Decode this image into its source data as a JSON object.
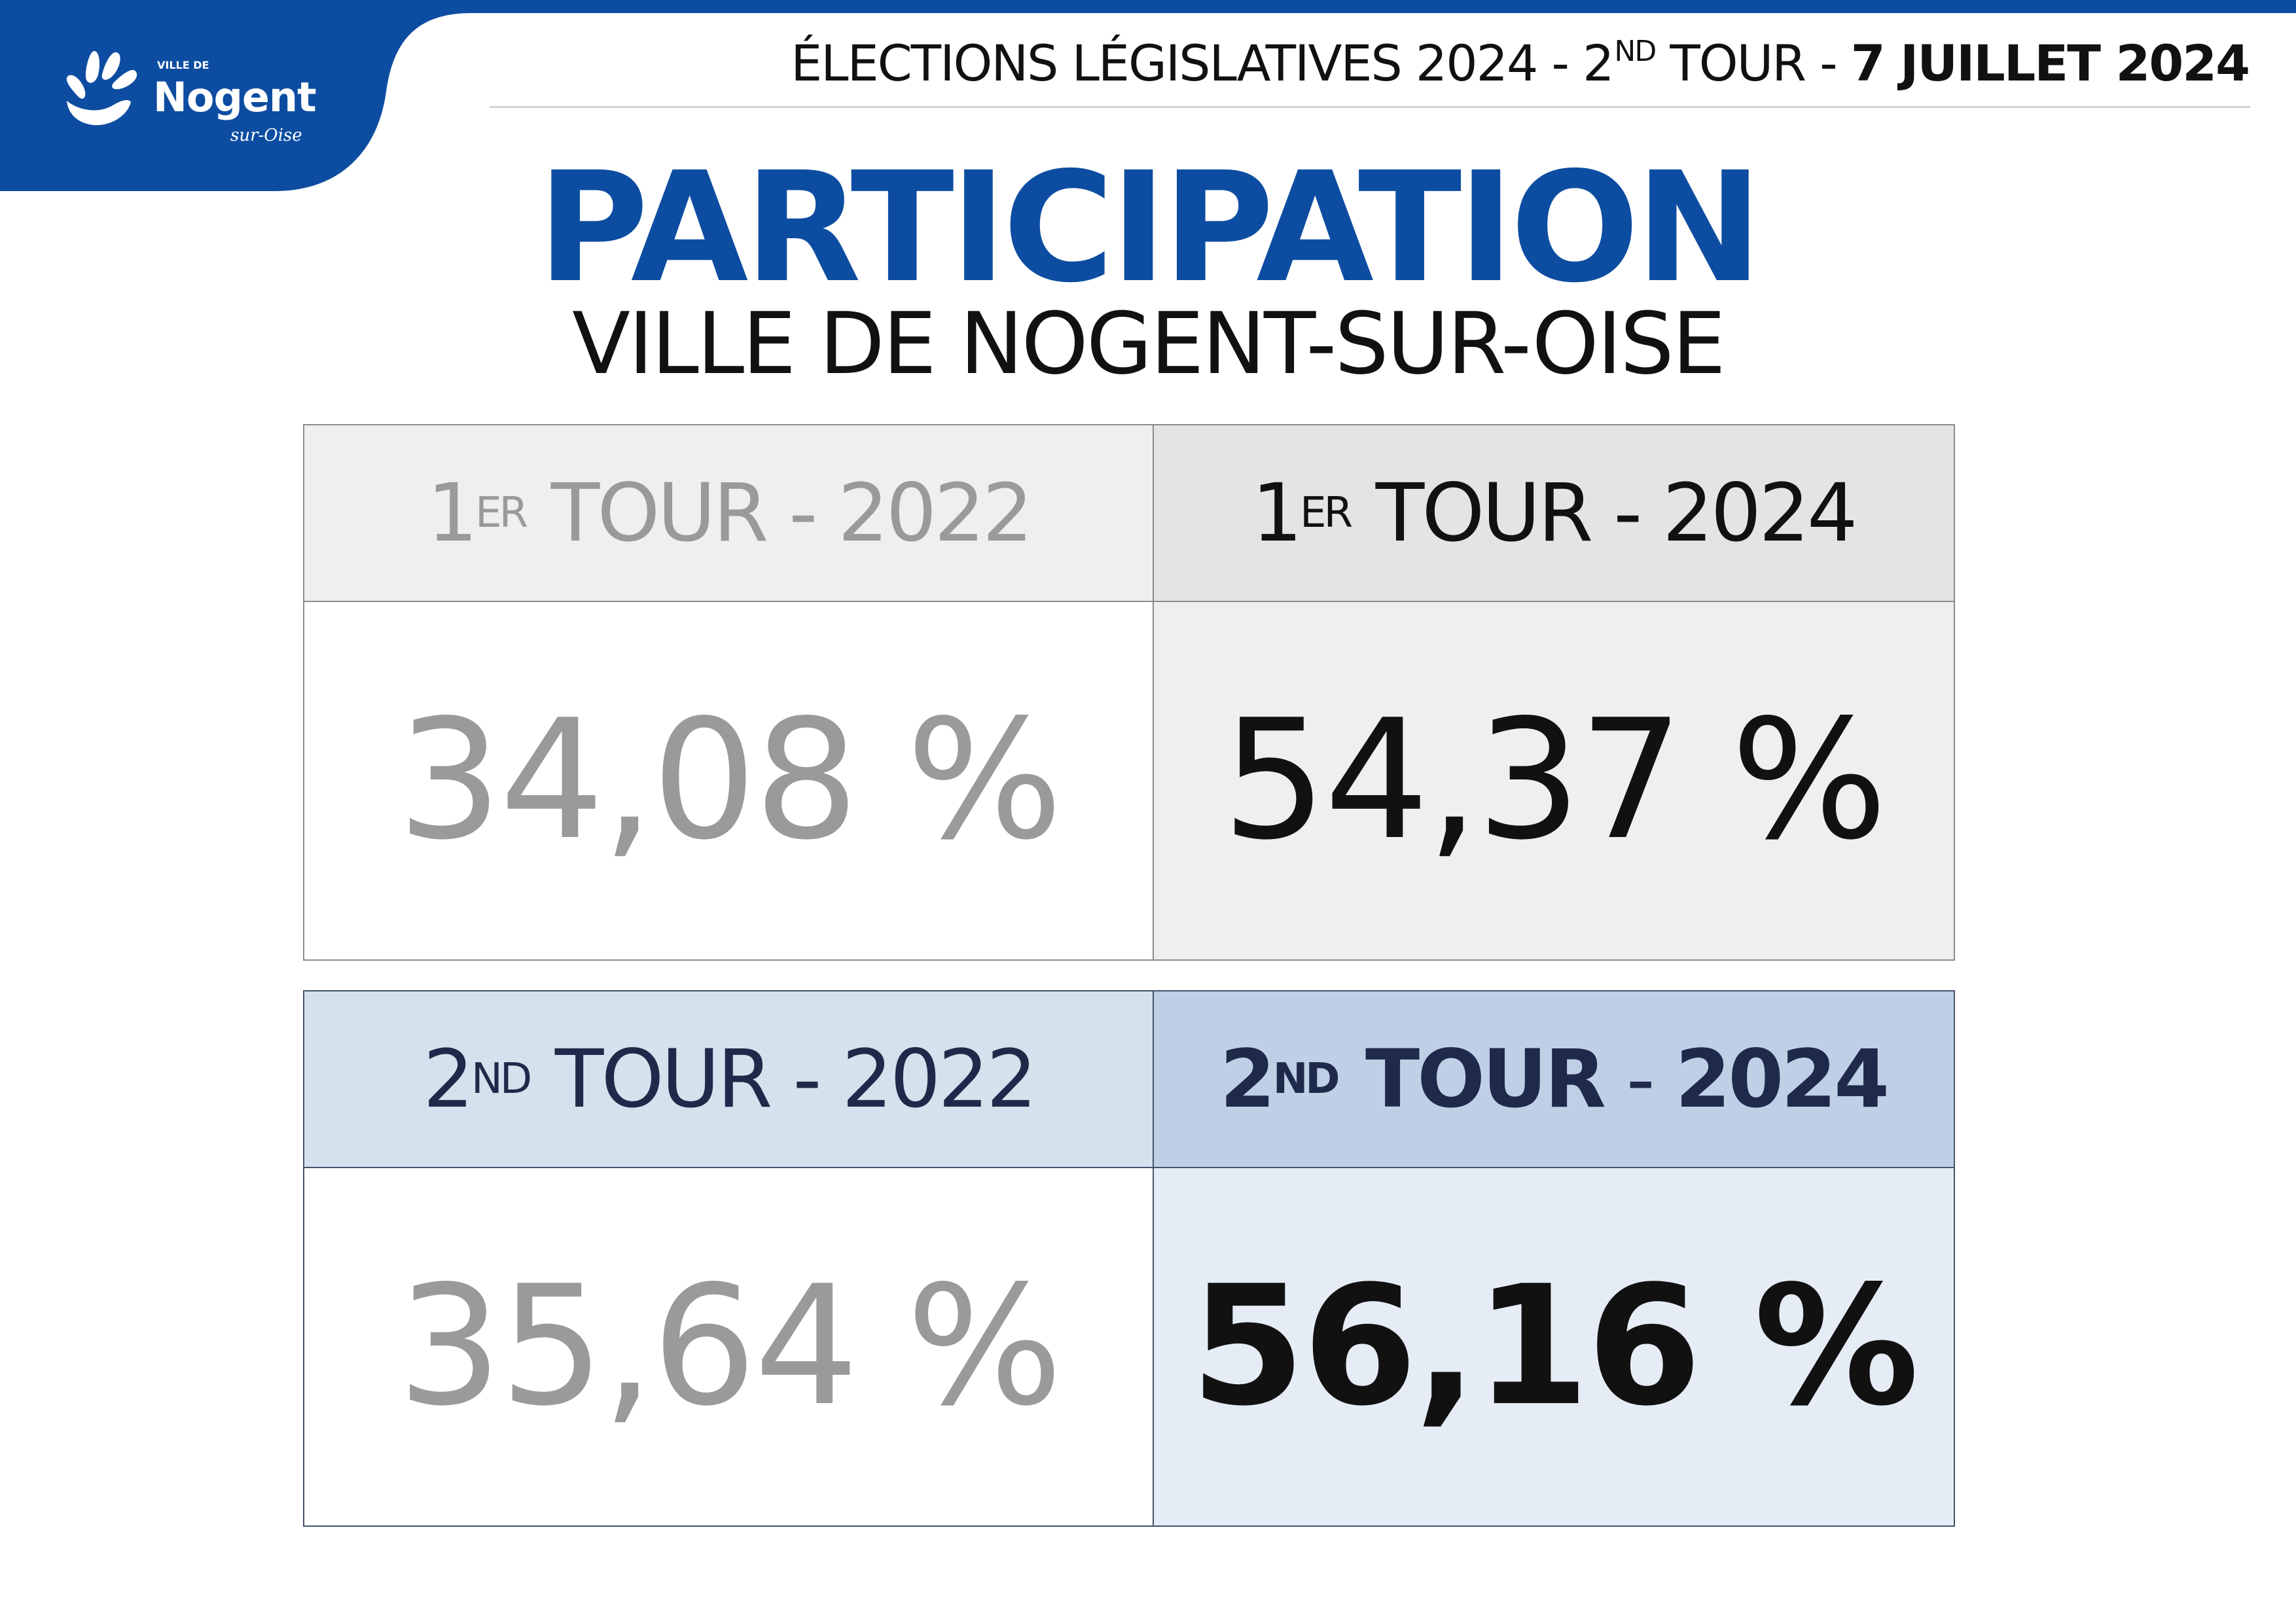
{
  "colors": {
    "brand_blue": "#0d4da1",
    "dark_navy": "#1f2a4a",
    "grey_text": "#9a9a9a"
  },
  "logo": {
    "small_text": "VILLE DE",
    "name": "Nogent",
    "sub": "sur-Oise",
    "icon": "city-logo-icon"
  },
  "header": {
    "title_prefix": "ÉLECTIONS LÉGISLATIVES 2024 - 2",
    "title_sup": "ND",
    "title_mid": " TOUR - ",
    "title_date": "7 JUILLET 2024"
  },
  "main_title": "PARTICIPATION",
  "subtitle": "VILLE DE NOGENT-SUR-OISE",
  "first_round": {
    "cells": [
      {
        "num": "1",
        "sup": "ER",
        "rest": " TOUR - 2022",
        "value": "34,08 %"
      },
      {
        "num": "1",
        "sup": "ER",
        "rest": " TOUR - 2024",
        "value": "54,37 %"
      }
    ]
  },
  "second_round": {
    "cells": [
      {
        "num": "2",
        "sup": "ND",
        "rest": " TOUR - 2022",
        "value": "35,64 %"
      },
      {
        "num": "2",
        "sup": "ND",
        "rest_bold": " TOUR",
        "sep": " - ",
        "year": "2024",
        "value": "56,16 %"
      }
    ]
  }
}
